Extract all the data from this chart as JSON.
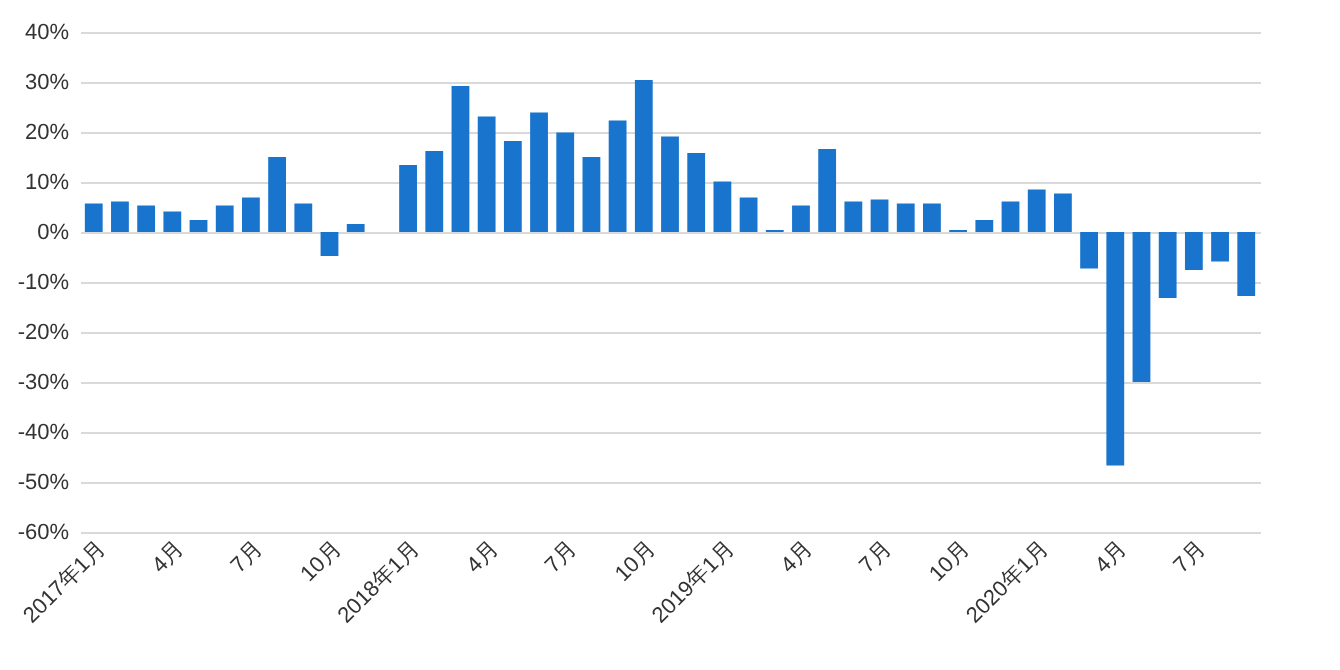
{
  "chart_data": {
    "type": "bar",
    "categories": [
      "2017年1月",
      null,
      null,
      "4月",
      null,
      null,
      "7月",
      null,
      null,
      "10月",
      null,
      null,
      "2018年1月",
      null,
      null,
      "4月",
      null,
      null,
      "7月",
      null,
      null,
      "10月",
      null,
      null,
      "2019年1月",
      null,
      null,
      "4月",
      null,
      null,
      "7月",
      null,
      null,
      "10月",
      null,
      null,
      "2020年1月",
      null,
      null,
      "4月",
      null,
      null,
      "7月",
      null,
      null
    ],
    "values": [
      5.7,
      6.1,
      5.3,
      4.1,
      2.4,
      5.3,
      6.9,
      15.0,
      5.7,
      -4.8,
      1.6,
      0,
      13.4,
      16.2,
      29.2,
      23.1,
      18.2,
      23.9,
      19.9,
      15.0,
      22.3,
      30.4,
      19.1,
      15.8,
      10.1,
      6.9,
      0.4,
      5.3,
      16.6,
      6.1,
      6.5,
      5.7,
      5.7,
      0.4,
      2.4,
      6.1,
      8.5,
      7.7,
      -7.3,
      -46.7,
      -30.0,
      -13.2,
      -7.6,
      -5.9,
      -12.8
    ],
    "color": "#1874cd",
    "ylim": [
      -60,
      40
    ],
    "yticks": [
      {
        "value": -60,
        "label": "-60%"
      },
      {
        "value": -50,
        "label": "-50%"
      },
      {
        "value": -40,
        "label": "-40%"
      },
      {
        "value": -30,
        "label": "-30%"
      },
      {
        "value": -20,
        "label": "-20%"
      },
      {
        "value": -10,
        "label": "-10%"
      },
      {
        "value": 0,
        "label": "0%"
      },
      {
        "value": 10,
        "label": "10%"
      },
      {
        "value": 20,
        "label": "20%"
      },
      {
        "value": 30,
        "label": "30%"
      },
      {
        "value": 40,
        "label": "40%"
      }
    ],
    "grid": "y"
  }
}
